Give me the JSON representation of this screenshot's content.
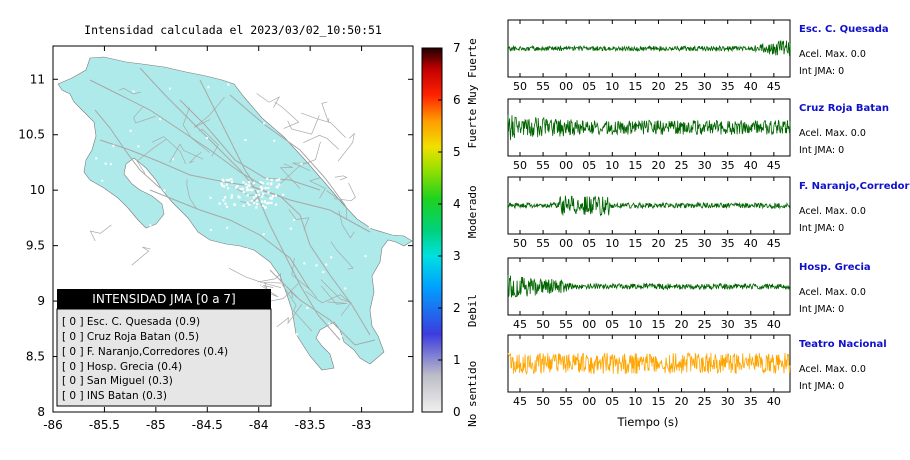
{
  "chart_data": [
    {
      "type": "map",
      "title": "Intensidad calculada el 2023/03/02_10:50:51",
      "xlim": [
        -86,
        -82.5
      ],
      "ylim": [
        8,
        11.3
      ],
      "x_ticks": [
        -86,
        -85.5,
        -85,
        -84.5,
        -84,
        -83.5,
        -83
      ],
      "y_ticks": [
        8,
        8.5,
        9,
        9.5,
        10,
        10.5,
        11
      ],
      "land_color": "#aeeaea",
      "road_color": "#a8a8a8",
      "colorbar": {
        "min": 0,
        "max": 7,
        "ticks": [
          0,
          1,
          2,
          3,
          4,
          5,
          6,
          7
        ],
        "labels": [
          {
            "text": "No sentido",
            "value": 0.35
          },
          {
            "text": "Debil",
            "value": 1.95
          },
          {
            "text": "Moderado",
            "value": 3.85
          },
          {
            "text": "Fuerte",
            "value": 5.45
          },
          {
            "text": "Muy Fuerte",
            "value": 6.55
          }
        ],
        "stops": [
          {
            "value": 0,
            "color": "#f0f0f0"
          },
          {
            "value": 0.7,
            "color": "#bdbdc8"
          },
          {
            "value": 1.5,
            "color": "#3c3ce0"
          },
          {
            "value": 2.4,
            "color": "#00a0ff"
          },
          {
            "value": 3.0,
            "color": "#00e0e0"
          },
          {
            "value": 3.5,
            "color": "#00d27a"
          },
          {
            "value": 4.1,
            "color": "#1ed21e"
          },
          {
            "value": 4.7,
            "color": "#a0e000"
          },
          {
            "value": 5.1,
            "color": "#f0e000"
          },
          {
            "value": 5.6,
            "color": "#ff9c00"
          },
          {
            "value": 6.1,
            "color": "#ff2000"
          },
          {
            "value": 6.6,
            "color": "#c00000"
          },
          {
            "value": 7,
            "color": "#200000"
          }
        ]
      },
      "legend": {
        "title": "INTENSIDAD JMA [0 a 7]",
        "items": [
          "[ 0 ] Esc. C. Quesada (0.9)",
          "[ 0 ] Cruz Roja Batan (0.5)",
          "[ 0 ] F. Naranjo,Corredores (0.4)",
          "[ 0 ] Hosp. Grecia (0.4)",
          "[ 0 ] San Miguel (0.3)",
          "[ 0 ] INS Batan (0.3)"
        ]
      }
    },
    {
      "type": "line",
      "title": "",
      "xlabel": "Tiempo (s)",
      "series": [
        {
          "name": "Esc. C. Quesada",
          "acel_label": "Acel. Max. 0.0",
          "int_label": "Int JMA: 0",
          "color": "#006400",
          "amplitude": 0.18,
          "burst_start": 0.86,
          "burst_end": 1.0,
          "burst_gain": 4.2,
          "noise": "rising",
          "ticks": [
            "50",
            "55",
            "00",
            "05",
            "10",
            "15",
            "20",
            "25",
            "30",
            "35",
            "40",
            "45"
          ]
        },
        {
          "name": "Cruz Roja Batan",
          "acel_label": "Acel. Max. 0.0",
          "int_label": "Int JMA: 0",
          "color": "#006400",
          "amplitude": 0.55,
          "burst_start": 0.0,
          "burst_end": 0.3,
          "burst_gain": 1.8,
          "noise": "decay",
          "ticks": [
            "50",
            "55",
            "00",
            "05",
            "10",
            "15",
            "20",
            "25",
            "30",
            "35",
            "40",
            "45"
          ]
        },
        {
          "name": "F. Naranjo,Corredores",
          "acel_label": "Acel. Max. 0.0",
          "int_label": "Int JMA: 0",
          "color": "#006400",
          "amplitude": 0.2,
          "burst_start": 0.18,
          "burst_end": 0.36,
          "burst_gain": 3.8,
          "noise": "burst",
          "ticks": [
            "50",
            "55",
            "00",
            "05",
            "10",
            "15",
            "20",
            "25",
            "30",
            "35",
            "40",
            "45"
          ]
        },
        {
          "name": "Hosp. Grecia",
          "acel_label": "Acel. Max. 0.0",
          "int_label": "Int JMA: 0",
          "color": "#006400",
          "amplitude": 0.22,
          "burst_start": 0.0,
          "burst_end": 0.22,
          "burst_gain": 4.0,
          "noise": "decay",
          "ticks": [
            "45",
            "50",
            "55",
            "00",
            "05",
            "10",
            "15",
            "20",
            "25",
            "30",
            "35",
            "40"
          ]
        },
        {
          "name": "Teatro Nacional",
          "acel_label": "Acel. Max. 0.0",
          "int_label": "Int JMA: 0",
          "color": "#ffa500",
          "amplitude": 0.8,
          "burst_start": 0.0,
          "burst_end": 0.0,
          "burst_gain": 1.0,
          "noise": "flat",
          "ticks": [
            "45",
            "50",
            "55",
            "00",
            "05",
            "10",
            "15",
            "20",
            "25",
            "30",
            "35",
            "40"
          ]
        }
      ]
    }
  ]
}
